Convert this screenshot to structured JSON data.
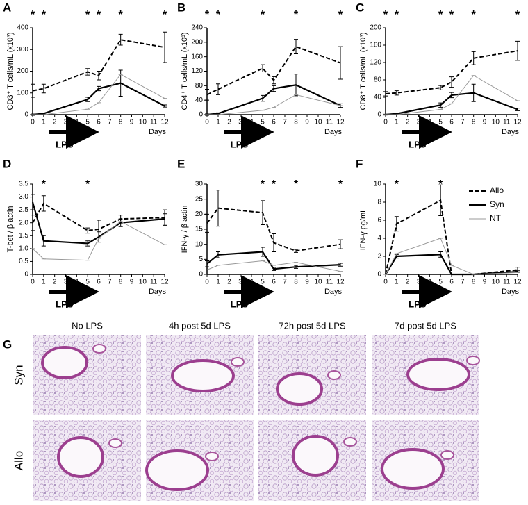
{
  "chart_data": [
    {
      "type": "line",
      "label": "A",
      "ylabel": "CD3⁺ T cells/mL (x10³)",
      "xlabel": "Days",
      "x": [
        0,
        1,
        5,
        6,
        8,
        12
      ],
      "xlim": [
        0,
        12
      ],
      "xticks": [
        0,
        1,
        2,
        3,
        4,
        5,
        6,
        7,
        8,
        9,
        10,
        11,
        12
      ],
      "ylim": [
        0,
        400
      ],
      "yticks": [
        0,
        100,
        200,
        300,
        400
      ],
      "series": [
        {
          "name": "Allo",
          "color": "#000000",
          "dashed": true,
          "values": [
            110,
            120,
            197,
            180,
            345,
            310
          ],
          "errors": [
            30,
            20,
            15,
            20,
            25,
            70
          ]
        },
        {
          "name": "Syn",
          "color": "#000000",
          "dashed": false,
          "values": [
            0,
            5,
            70,
            120,
            145,
            40
          ],
          "errors": [
            3,
            3,
            10,
            10,
            60,
            5
          ]
        },
        {
          "name": "NT",
          "color": "#999999",
          "dashed": false,
          "values": [
            0,
            0,
            25,
            55,
            185,
            75
          ],
          "errors": [
            0,
            0,
            0,
            0,
            0,
            0
          ]
        }
      ],
      "annotations": [
        {
          "x": 0,
          "text": "*"
        },
        {
          "x": 1,
          "text": "*"
        },
        {
          "x": 5,
          "text": "*"
        },
        {
          "x": 6,
          "text": "*"
        },
        {
          "x": 8,
          "text": "*"
        },
        {
          "x": 12,
          "text": "*"
        }
      ],
      "treatment": {
        "label": "LPS",
        "start": 1.5,
        "end": 5.3
      }
    },
    {
      "type": "line",
      "label": "B",
      "ylabel": "CD4⁺ T cells/mL (x10³)",
      "xlabel": "Days",
      "x": [
        0,
        1,
        5,
        6,
        8,
        12
      ],
      "xlim": [
        0,
        12
      ],
      "xticks": [
        0,
        1,
        2,
        3,
        4,
        5,
        6,
        7,
        8,
        9,
        10,
        11,
        12
      ],
      "ylim": [
        0,
        240
      ],
      "yticks": [
        0,
        40,
        80,
        120,
        160,
        200,
        240
      ],
      "series": [
        {
          "name": "Allo",
          "color": "#000000",
          "dashed": true,
          "values": [
            55,
            70,
            128,
            95,
            188,
            143
          ],
          "errors": [
            15,
            15,
            10,
            10,
            20,
            45
          ]
        },
        {
          "name": "Syn",
          "color": "#000000",
          "dashed": false,
          "values": [
            0,
            3,
            45,
            72,
            82,
            25
          ],
          "errors": [
            2,
            2,
            8,
            8,
            30,
            5
          ]
        },
        {
          "name": "NT",
          "color": "#999999",
          "dashed": false,
          "values": [
            0,
            0,
            12,
            20,
            55,
            25
          ],
          "errors": [
            0,
            0,
            0,
            0,
            0,
            0
          ]
        }
      ],
      "annotations": [
        {
          "x": 0,
          "text": "*"
        },
        {
          "x": 1,
          "text": "*"
        },
        {
          "x": 5,
          "text": "*"
        },
        {
          "x": 8,
          "text": "*"
        },
        {
          "x": 12,
          "text": "*"
        }
      ],
      "treatment": {
        "label": "LPS",
        "start": 1.5,
        "end": 5.3
      }
    },
    {
      "type": "line",
      "label": "C",
      "ylabel": "CD8⁺ T cells/mL (x10³)",
      "xlabel": "Days",
      "x": [
        0,
        1,
        5,
        6,
        8,
        12
      ],
      "xlim": [
        0,
        12
      ],
      "xticks": [
        0,
        1,
        2,
        3,
        4,
        5,
        6,
        7,
        8,
        9,
        10,
        11,
        12
      ],
      "ylim": [
        0,
        200
      ],
      "yticks": [
        0,
        40,
        80,
        120,
        160,
        200
      ],
      "series": [
        {
          "name": "Allo",
          "color": "#000000",
          "dashed": true,
          "values": [
            48,
            50,
            62,
            75,
            130,
            147
          ],
          "errors": [
            5,
            5,
            5,
            12,
            15,
            22
          ]
        },
        {
          "name": "Syn",
          "color": "#000000",
          "dashed": false,
          "values": [
            0,
            2,
            22,
            45,
            50,
            12
          ],
          "errors": [
            1,
            1,
            5,
            6,
            20,
            3
          ]
        },
        {
          "name": "NT",
          "color": "#999999",
          "dashed": false,
          "values": [
            0,
            0,
            12,
            25,
            90,
            32
          ],
          "errors": [
            0,
            0,
            0,
            0,
            0,
            0
          ]
        }
      ],
      "annotations": [
        {
          "x": 0,
          "text": "*"
        },
        {
          "x": 1,
          "text": "*"
        },
        {
          "x": 5,
          "text": "*"
        },
        {
          "x": 6,
          "text": "*"
        },
        {
          "x": 8,
          "text": "*"
        },
        {
          "x": 12,
          "text": "*"
        }
      ],
      "treatment": {
        "label": "LPS",
        "start": 1.5,
        "end": 5.3
      }
    },
    {
      "type": "line",
      "label": "D",
      "ylabel": "T-bet / β actin",
      "xlabel": "Days",
      "x": [
        0,
        1,
        5,
        6,
        8,
        12
      ],
      "xlim": [
        0,
        12
      ],
      "xticks": [
        0,
        1,
        2,
        3,
        4,
        5,
        6,
        7,
        8,
        9,
        10,
        11,
        12
      ],
      "ylim": [
        0,
        3.5
      ],
      "yticks": [
        0,
        0.5,
        {
          "value": 1,
          "label": "1.0"
        },
        1.5,
        {
          "value": 2,
          "label": "2.0"
        },
        2.5,
        {
          "value": 3,
          "label": "3.0"
        },
        3.5
      ],
      "series": [
        {
          "name": "Allo",
          "color": "#000000",
          "dashed": true,
          "values": [
            2.0,
            2.75,
            1.7,
            1.75,
            2.15,
            2.2
          ],
          "errors": [
            0.3,
            0.3,
            0.1,
            0.35,
            0.15,
            0.3
          ]
        },
        {
          "name": "Syn",
          "color": "#000000",
          "dashed": false,
          "values": [
            2.8,
            1.3,
            1.2,
            1.45,
            2.0,
            2.15
          ],
          "errors": [
            0.3,
            0.2,
            0.1,
            0.2,
            0.15,
            0.2
          ]
        },
        {
          "name": "NT",
          "color": "#999999",
          "dashed": false,
          "values": [
            1.0,
            0.6,
            0.55,
            1.4,
            2.05,
            1.15
          ],
          "errors": [
            0,
            0,
            0,
            0,
            0,
            0
          ]
        }
      ],
      "annotations": [
        {
          "x": 1,
          "text": "*"
        },
        {
          "x": 5,
          "text": "*"
        }
      ],
      "treatment": {
        "label": "LPS",
        "start": 1.5,
        "end": 5.3
      }
    },
    {
      "type": "line",
      "label": "E",
      "ylabel": "IFN-γ / β actin",
      "xlabel": "Days",
      "x": [
        0,
        1,
        5,
        6,
        8,
        12
      ],
      "xlim": [
        0,
        12
      ],
      "xticks": [
        0,
        1,
        2,
        3,
        4,
        5,
        6,
        7,
        8,
        9,
        10,
        11,
        12
      ],
      "ylim": [
        0,
        30
      ],
      "yticks": [
        0,
        5,
        10,
        15,
        20,
        25,
        30
      ],
      "series": [
        {
          "name": "Allo",
          "color": "#000000",
          "dashed": true,
          "values": [
            17,
            22,
            20.5,
            10.5,
            7.8,
            10
          ],
          "errors": [
            3,
            6,
            4,
            3,
            0.5,
            1.5
          ]
        },
        {
          "name": "Syn",
          "color": "#000000",
          "dashed": false,
          "values": [
            3.5,
            6.5,
            7.5,
            1.8,
            2.5,
            3.2
          ],
          "errors": [
            1,
            1,
            1.5,
            0.5,
            0.5,
            0.5
          ]
        },
        {
          "name": "NT",
          "color": "#999999",
          "dashed": false,
          "values": [
            1.5,
            3,
            4.5,
            3,
            4,
            1
          ],
          "errors": [
            0,
            0,
            0,
            0,
            0,
            0
          ]
        }
      ],
      "annotations": [
        {
          "x": 5,
          "text": "*"
        },
        {
          "x": 6,
          "text": "*"
        },
        {
          "x": 8,
          "text": "*"
        },
        {
          "x": 12,
          "text": "*"
        }
      ],
      "treatment": {
        "label": "LPS",
        "start": 1.5,
        "end": 5.3
      }
    },
    {
      "type": "line",
      "label": "F",
      "ylabel": "IFN-γ pg/mL",
      "xlabel": "Days",
      "x": [
        0,
        1,
        5,
        6,
        8,
        12
      ],
      "xlim": [
        0,
        12
      ],
      "xticks": [
        0,
        1,
        2,
        3,
        4,
        5,
        6,
        7,
        8,
        9,
        10,
        11,
        12
      ],
      "ylim": [
        0,
        10
      ],
      "yticks": [
        0,
        2,
        4,
        6,
        8,
        10
      ],
      "series": [
        {
          "name": "Allo",
          "color": "#000000",
          "dashed": true,
          "values": [
            0,
            5.6,
            8.2,
            0,
            0,
            0.5
          ],
          "errors": [
            0,
            0.8,
            1.7,
            0,
            0,
            0.3
          ]
        },
        {
          "name": "Syn",
          "color": "#000000",
          "dashed": false,
          "values": [
            0,
            2,
            2.2,
            0,
            0,
            0.3
          ],
          "errors": [
            0,
            0.2,
            0.3,
            0,
            0,
            0.1
          ]
        },
        {
          "name": "NT",
          "color": "#999999",
          "dashed": false,
          "values": [
            0,
            2.3,
            4,
            1,
            0,
            0.2
          ],
          "errors": [
            0,
            0,
            0,
            0,
            0,
            0
          ]
        }
      ],
      "annotations": [
        {
          "x": 1,
          "text": "*"
        },
        {
          "x": 5,
          "text": "*"
        }
      ],
      "treatment": {
        "label": "LPS",
        "start": 1.5,
        "end": 5.3
      },
      "legend": "right"
    }
  ],
  "histology": {
    "label": "G",
    "columns": [
      "No LPS",
      "4h post 5d LPS",
      "72h post 5d LPS",
      "7d post 5d LPS"
    ],
    "rows": [
      "Syn",
      "Allo"
    ]
  }
}
